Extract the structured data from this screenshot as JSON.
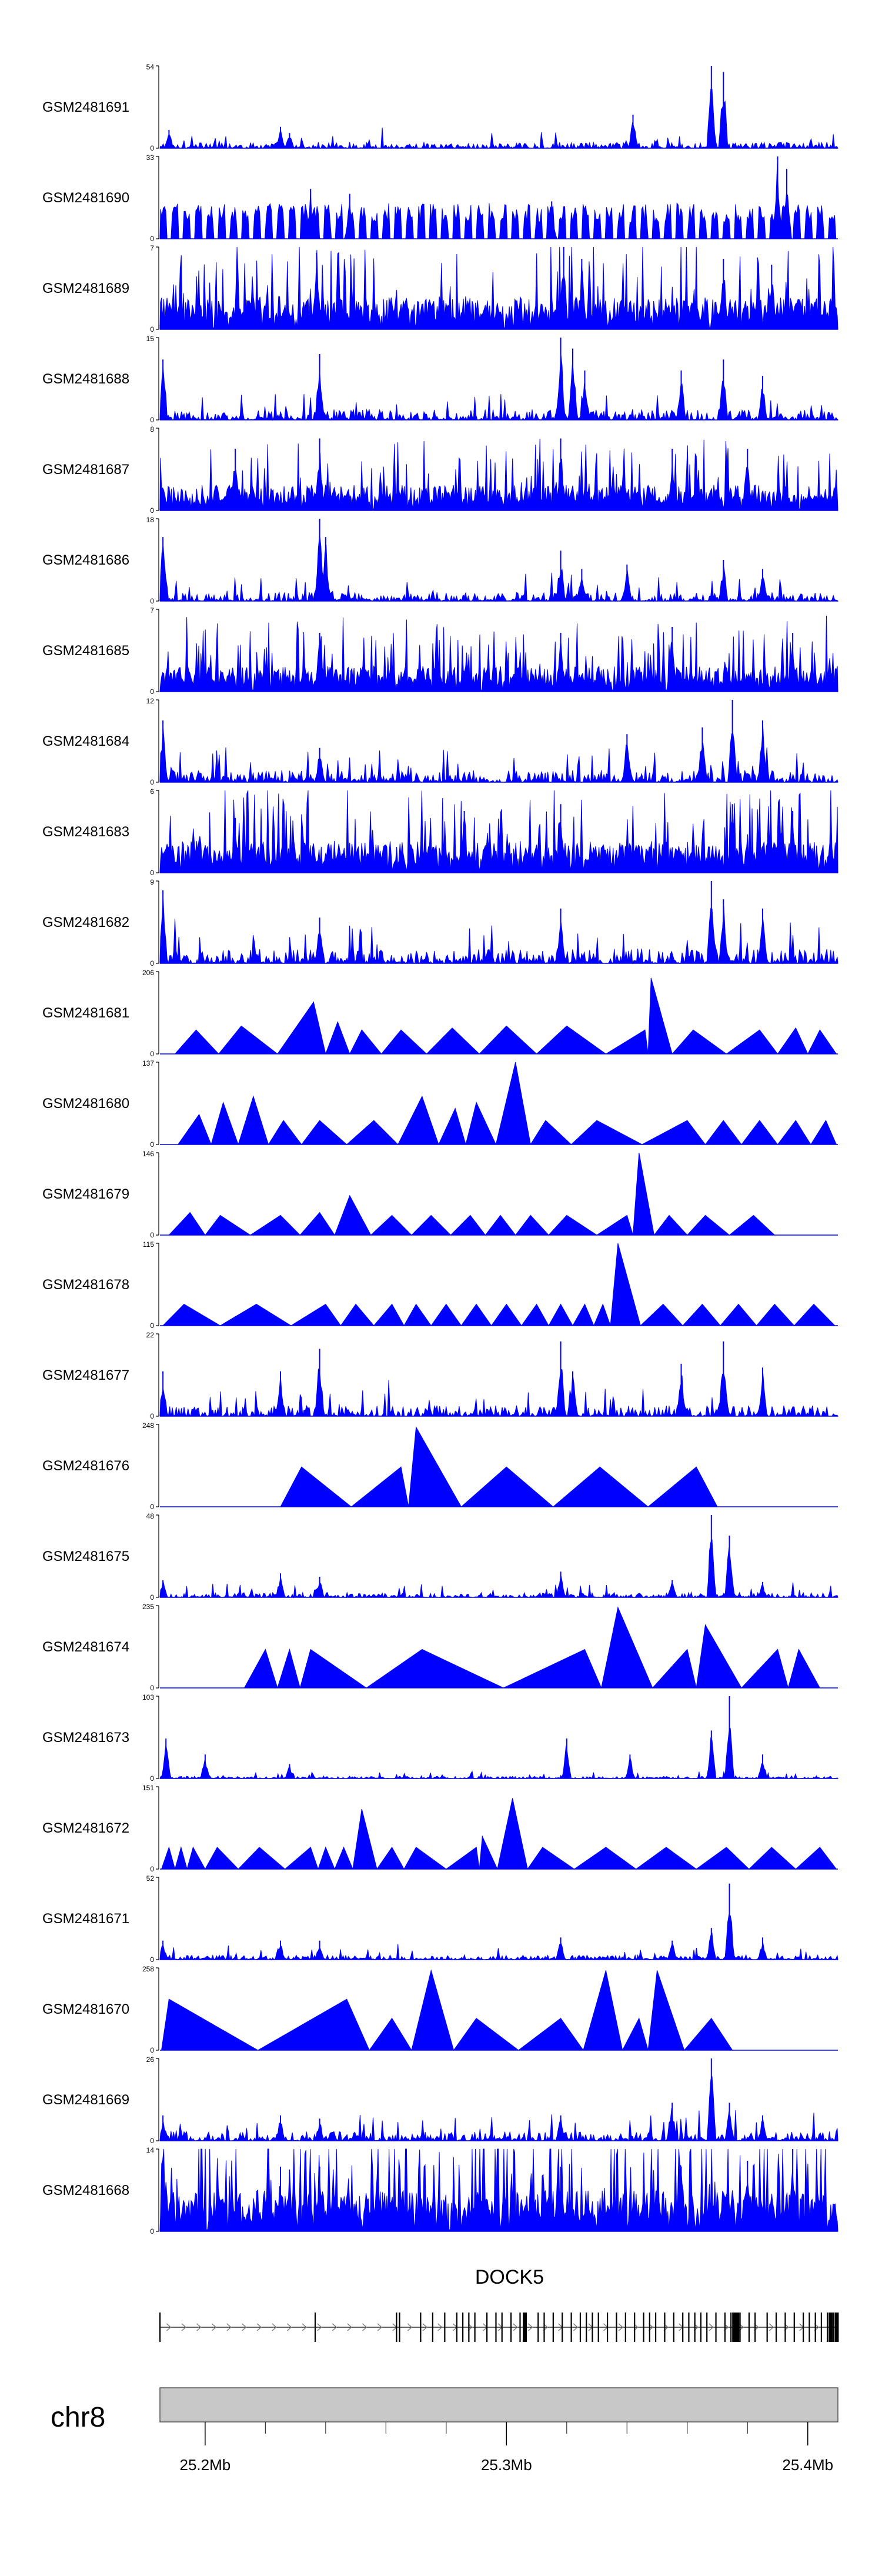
{
  "chart_data": {
    "type": "area",
    "title": "",
    "genomic_range": {
      "chromosome": "chr8",
      "start_mb": 25.185,
      "end_mb": 25.41
    },
    "colors": {
      "signal": "#0000ff",
      "axis": "#000000",
      "ideogram_fill": "#c8c8c8",
      "ideogram_stroke": "#555555"
    },
    "tracks": [
      {
        "name": "GSM2481691",
        "ymax": "54",
        "ymin": "0",
        "style": "spiky",
        "baseline": 2.5,
        "density": 1.0,
        "peaks": [
          [
            25.188,
            12
          ],
          [
            25.225,
            14
          ],
          [
            25.228,
            10
          ],
          [
            25.342,
            22
          ],
          [
            25.368,
            54
          ],
          [
            25.372,
            50
          ]
        ]
      },
      {
        "name": "GSM2481690",
        "ymax": "33",
        "ymin": "0",
        "style": "sparse",
        "baseline": 13,
        "density": 1.0,
        "peaks": [
          [
            25.235,
            20
          ],
          [
            25.248,
            18
          ],
          [
            25.315,
            15
          ],
          [
            25.39,
            33
          ],
          [
            25.393,
            28
          ]
        ]
      },
      {
        "name": "GSM2481689",
        "ymax": "7",
        "ymin": "0",
        "style": "dense",
        "baseline": 1.8,
        "density": 1.0,
        "peaks": [
          [
            25.237,
            6.5
          ],
          [
            25.319,
            7
          ],
          [
            25.325,
            6
          ],
          [
            25.372,
            6
          ],
          [
            25.388,
            5.5
          ]
        ]
      },
      {
        "name": "GSM2481688",
        "ymax": "15",
        "ymin": "0",
        "style": "spiky",
        "baseline": 1.2,
        "density": 0.8,
        "peaks": [
          [
            25.186,
            11
          ],
          [
            25.238,
            12
          ],
          [
            25.318,
            15
          ],
          [
            25.322,
            13
          ],
          [
            25.326,
            9
          ],
          [
            25.358,
            9
          ],
          [
            25.372,
            11
          ],
          [
            25.385,
            8
          ]
        ]
      },
      {
        "name": "GSM2481687",
        "ymax": "8",
        "ymin": "0",
        "style": "dense",
        "baseline": 1.6,
        "density": 1.0,
        "peaks": [
          [
            25.21,
            6
          ],
          [
            25.238,
            7
          ],
          [
            25.318,
            7
          ],
          [
            25.355,
            6
          ],
          [
            25.38,
            6
          ]
        ]
      },
      {
        "name": "GSM2481686",
        "ymax": "18",
        "ymin": "0",
        "style": "spiky",
        "baseline": 1.2,
        "density": 0.8,
        "peaks": [
          [
            25.186,
            14
          ],
          [
            25.238,
            18
          ],
          [
            25.24,
            14
          ],
          [
            25.318,
            11
          ],
          [
            25.325,
            7
          ],
          [
            25.34,
            8
          ],
          [
            25.372,
            9
          ],
          [
            25.385,
            7
          ]
        ]
      },
      {
        "name": "GSM2481685",
        "ymax": "7",
        "ymin": "0",
        "style": "dense",
        "baseline": 1.4,
        "density": 1.0,
        "peaks": [
          [
            25.238,
            5
          ],
          [
            25.318,
            5
          ],
          [
            25.355,
            5.5
          ],
          [
            25.395,
            5
          ]
        ]
      },
      {
        "name": "GSM2481684",
        "ymax": "12",
        "ymin": "0",
        "style": "spiky",
        "baseline": 1.1,
        "density": 0.9,
        "peaks": [
          [
            25.186,
            9
          ],
          [
            25.238,
            5
          ],
          [
            25.34,
            7
          ],
          [
            25.365,
            8
          ],
          [
            25.375,
            12
          ],
          [
            25.385,
            9
          ]
        ]
      },
      {
        "name": "GSM2481683",
        "ymax": "6",
        "ymin": "0",
        "style": "dense",
        "baseline": 1.5,
        "density": 1.0,
        "peaks": [
          [
            25.21,
            4
          ],
          [
            25.286,
            4.5
          ],
          [
            25.318,
            5
          ],
          [
            25.375,
            5
          ],
          [
            25.395,
            4.5
          ]
        ]
      },
      {
        "name": "GSM2481682",
        "ymax": "9",
        "ymin": "0",
        "style": "spiky",
        "baseline": 1.0,
        "density": 1.0,
        "peaks": [
          [
            25.186,
            8
          ],
          [
            25.238,
            5
          ],
          [
            25.318,
            6
          ],
          [
            25.368,
            9
          ],
          [
            25.372,
            7
          ],
          [
            25.385,
            6
          ]
        ]
      },
      {
        "name": "GSM2481681",
        "ymax": "206",
        "ymin": "0",
        "style": "triangles",
        "baseline": 0,
        "density": 1.0,
        "peaks": [
          [
            25.197,
            60
          ],
          [
            25.212,
            70
          ],
          [
            25.236,
            130
          ],
          [
            25.244,
            80
          ],
          [
            25.252,
            60
          ],
          [
            25.265,
            60
          ],
          [
            25.282,
            65
          ],
          [
            25.3,
            70
          ],
          [
            25.32,
            70
          ],
          [
            25.346,
            60
          ],
          [
            25.348,
            190
          ],
          [
            25.362,
            60
          ],
          [
            25.384,
            60
          ],
          [
            25.396,
            65
          ],
          [
            25.404,
            60
          ]
        ]
      },
      {
        "name": "GSM2481680",
        "ymax": "137",
        "ymin": "0",
        "style": "triangles",
        "baseline": 0,
        "density": 1.0,
        "peaks": [
          [
            25.198,
            50
          ],
          [
            25.206,
            70
          ],
          [
            25.216,
            80
          ],
          [
            25.226,
            40
          ],
          [
            25.238,
            40
          ],
          [
            25.256,
            40
          ],
          [
            25.272,
            80
          ],
          [
            25.283,
            60
          ],
          [
            25.29,
            70
          ],
          [
            25.303,
            137
          ],
          [
            25.313,
            40
          ],
          [
            25.33,
            40
          ],
          [
            25.36,
            40
          ],
          [
            25.372,
            40
          ],
          [
            25.384,
            40
          ],
          [
            25.396,
            40
          ],
          [
            25.406,
            40
          ]
        ]
      },
      {
        "name": "GSM2481679",
        "ymax": "146",
        "ymin": "0",
        "style": "triangles",
        "baseline": 0,
        "density": 1.0,
        "peaks": [
          [
            25.195,
            40
          ],
          [
            25.205,
            35
          ],
          [
            25.225,
            35
          ],
          [
            25.238,
            40
          ],
          [
            25.248,
            70
          ],
          [
            25.262,
            35
          ],
          [
            25.275,
            35
          ],
          [
            25.288,
            35
          ],
          [
            25.298,
            35
          ],
          [
            25.308,
            35
          ],
          [
            25.32,
            35
          ],
          [
            25.34,
            35
          ],
          [
            25.344,
            146
          ],
          [
            25.354,
            35
          ],
          [
            25.366,
            35
          ],
          [
            25.382,
            35
          ]
        ]
      },
      {
        "name": "GSM2481678",
        "ymax": "115",
        "ymin": "0",
        "style": "triangles",
        "baseline": 0,
        "density": 1.0,
        "peaks": [
          [
            25.193,
            30
          ],
          [
            25.217,
            30
          ],
          [
            25.24,
            30
          ],
          [
            25.25,
            30
          ],
          [
            25.262,
            30
          ],
          [
            25.27,
            30
          ],
          [
            25.28,
            30
          ],
          [
            25.29,
            30
          ],
          [
            25.3,
            30
          ],
          [
            25.31,
            30
          ],
          [
            25.318,
            30
          ],
          [
            25.326,
            30
          ],
          [
            25.332,
            30
          ],
          [
            25.337,
            115
          ],
          [
            25.352,
            30
          ],
          [
            25.365,
            30
          ],
          [
            25.377,
            30
          ],
          [
            25.389,
            30
          ],
          [
            25.402,
            30
          ]
        ]
      },
      {
        "name": "GSM2481677",
        "ymax": "22",
        "ymin": "0",
        "style": "spiky",
        "baseline": 1.8,
        "density": 1.0,
        "peaks": [
          [
            25.186,
            12
          ],
          [
            25.225,
            12
          ],
          [
            25.238,
            18
          ],
          [
            25.318,
            20
          ],
          [
            25.322,
            12
          ],
          [
            25.358,
            14
          ],
          [
            25.372,
            20
          ],
          [
            25.385,
            13
          ]
        ]
      },
      {
        "name": "GSM2481676",
        "ymax": "248",
        "ymin": "0",
        "style": "triangles",
        "baseline": 0,
        "density": 1.0,
        "peaks": [
          [
            25.232,
            120
          ],
          [
            25.265,
            120
          ],
          [
            25.27,
            240
          ],
          [
            25.3,
            120
          ],
          [
            25.331,
            120
          ],
          [
            25.363,
            120
          ]
        ]
      },
      {
        "name": "GSM2481675",
        "ymax": "48",
        "ymin": "0",
        "style": "spiky",
        "baseline": 1.8,
        "density": 1.0,
        "peaks": [
          [
            25.186,
            10
          ],
          [
            25.225,
            14
          ],
          [
            25.238,
            12
          ],
          [
            25.318,
            15
          ],
          [
            25.355,
            10
          ],
          [
            25.368,
            48
          ],
          [
            25.374,
            36
          ],
          [
            25.385,
            9
          ]
        ]
      },
      {
        "name": "GSM2481674",
        "ymax": "235",
        "ymin": "0",
        "style": "triangles",
        "baseline": 0,
        "density": 1.0,
        "peaks": [
          [
            25.22,
            110
          ],
          [
            25.228,
            110
          ],
          [
            25.235,
            110
          ],
          [
            25.272,
            110
          ],
          [
            25.326,
            110
          ],
          [
            25.337,
            230
          ],
          [
            25.36,
            110
          ],
          [
            25.366,
            180
          ],
          [
            25.39,
            110
          ],
          [
            25.397,
            110
          ]
        ]
      },
      {
        "name": "GSM2481673",
        "ymax": "103",
        "ymin": "0",
        "style": "spiky",
        "baseline": 1.8,
        "density": 0.8,
        "peaks": [
          [
            25.187,
            50
          ],
          [
            25.2,
            30
          ],
          [
            25.228,
            18
          ],
          [
            25.32,
            50
          ],
          [
            25.341,
            30
          ],
          [
            25.368,
            60
          ],
          [
            25.374,
            103
          ],
          [
            25.385,
            30
          ]
        ]
      },
      {
        "name": "GSM2481672",
        "ymax": "151",
        "ymin": "0",
        "style": "triangles",
        "baseline": 0,
        "density": 1.0,
        "peaks": [
          [
            25.188,
            40
          ],
          [
            25.192,
            40
          ],
          [
            25.196,
            40
          ],
          [
            25.204,
            40
          ],
          [
            25.218,
            40
          ],
          [
            25.235,
            40
          ],
          [
            25.24,
            40
          ],
          [
            25.246,
            40
          ],
          [
            25.252,
            110
          ],
          [
            25.262,
            40
          ],
          [
            25.27,
            40
          ],
          [
            25.29,
            40
          ],
          [
            25.292,
            60
          ],
          [
            25.302,
            130
          ],
          [
            25.312,
            40
          ],
          [
            25.333,
            40
          ],
          [
            25.353,
            40
          ],
          [
            25.373,
            40
          ],
          [
            25.388,
            40
          ],
          [
            25.404,
            40
          ]
        ]
      },
      {
        "name": "GSM2481671",
        "ymax": "52",
        "ymin": "0",
        "style": "spiky",
        "baseline": 1.8,
        "density": 1.0,
        "peaks": [
          [
            25.186,
            12
          ],
          [
            25.225,
            12
          ],
          [
            25.238,
            12
          ],
          [
            25.318,
            14
          ],
          [
            25.355,
            12
          ],
          [
            25.368,
            20
          ],
          [
            25.374,
            48
          ],
          [
            25.385,
            14
          ]
        ]
      },
      {
        "name": "GSM2481670",
        "ymax": "258",
        "ymin": "0",
        "style": "triangles",
        "baseline": 0,
        "density": 1.0,
        "peaks": [
          [
            25.188,
            160
          ],
          [
            25.247,
            160
          ],
          [
            25.262,
            100
          ],
          [
            25.275,
            250
          ],
          [
            25.29,
            100
          ],
          [
            25.318,
            100
          ],
          [
            25.333,
            250
          ],
          [
            25.344,
            100
          ],
          [
            25.35,
            250
          ],
          [
            25.368,
            100
          ]
        ]
      },
      {
        "name": "GSM2481669",
        "ymax": "26",
        "ymin": "0",
        "style": "spiky",
        "baseline": 1.8,
        "density": 1.0,
        "peaks": [
          [
            25.186,
            8
          ],
          [
            25.225,
            8
          ],
          [
            25.238,
            7
          ],
          [
            25.318,
            8
          ],
          [
            25.355,
            12
          ],
          [
            25.368,
            26
          ],
          [
            25.374,
            12
          ],
          [
            25.385,
            8
          ]
        ]
      },
      {
        "name": "GSM2481668",
        "ymax": "14",
        "ymin": "0",
        "style": "dense",
        "baseline": 4.5,
        "density": 1.0,
        "peaks": [
          [
            25.225,
            11
          ],
          [
            25.238,
            11
          ],
          [
            25.318,
            11
          ],
          [
            25.358,
            11
          ],
          [
            25.38,
            12
          ],
          [
            25.395,
            14
          ]
        ]
      }
    ],
    "gene": {
      "name": "DOCK5",
      "start_mb": 25.185,
      "end_mb": 25.41,
      "strand": "+",
      "exons_mb": [
        25.185,
        25.2365,
        25.2635,
        25.2645,
        25.2715,
        25.2755,
        25.2795,
        25.2835,
        25.2855,
        25.2875,
        25.2895,
        25.2935,
        25.2965,
        25.2985,
        25.3015,
        25.3045,
        25.3065,
        25.3105,
        25.3125,
        25.3155,
        25.3185,
        25.3215,
        25.3245,
        25.3265,
        25.3285,
        25.3305,
        25.3335,
        25.3365,
        25.3395,
        25.3425,
        25.3455,
        25.3475,
        25.3495,
        25.3525,
        25.3555,
        25.3585,
        25.3605,
        25.3625,
        25.3645,
        25.3665,
        25.3695,
        25.3725,
        25.3745,
        25.3775,
        25.3805,
        25.3825,
        25.3865,
        25.3895,
        25.3925,
        25.3955,
        25.3985,
        25.4005,
        25.4025,
        25.4045,
        25.4065,
        25.4085
      ],
      "thick_exons_mb": [
        25.306,
        25.3755,
        25.376,
        25.3765,
        25.4075,
        25.4095
      ]
    },
    "x_axis": {
      "ticks_minor_mb": [
        25.2,
        25.22,
        25.24,
        25.26,
        25.28,
        25.3,
        25.32,
        25.34,
        25.36,
        25.38,
        25.4
      ],
      "tick_labels": [
        {
          "mb": 25.2,
          "label": "25.2Mb"
        },
        {
          "mb": 25.3,
          "label": "25.3Mb"
        },
        {
          "mb": 25.4,
          "label": "25.4Mb"
        }
      ]
    }
  }
}
